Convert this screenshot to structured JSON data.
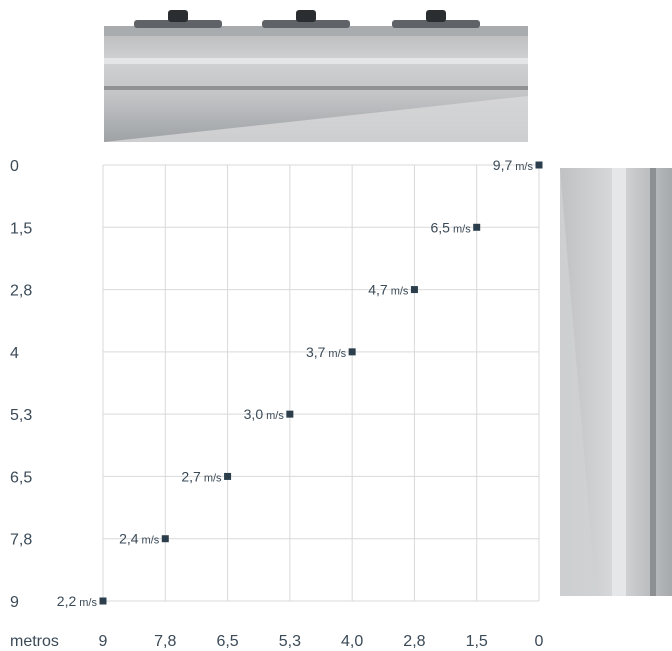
{
  "chart_data": {
    "type": "scatter",
    "title": "",
    "xlabel": "metros",
    "ylabel": "",
    "x_tick_labels": [
      "9",
      "7,8",
      "6,5",
      "5,3",
      "4,0",
      "2,8",
      "1,5",
      "0"
    ],
    "y_tick_labels": [
      "0",
      "1,5",
      "2,8",
      "4",
      "5,3",
      "6,5",
      "7,8",
      "9"
    ],
    "unit": "m/s",
    "points": [
      {
        "x": 0,
        "y": 0,
        "value": "9,7"
      },
      {
        "x": 1.5,
        "y": 1.5,
        "value": "6,5"
      },
      {
        "x": 2.8,
        "y": 2.8,
        "value": "4,7"
      },
      {
        "x": 4.0,
        "y": 4.0,
        "value": "3,7"
      },
      {
        "x": 5.3,
        "y": 5.3,
        "value": "3,0"
      },
      {
        "x": 6.5,
        "y": 6.5,
        "value": "2,7"
      },
      {
        "x": 7.8,
        "y": 7.8,
        "value": "2,4"
      },
      {
        "x": 9,
        "y": 9,
        "value": "2,2"
      }
    ],
    "grid": true,
    "marker_color": "#2c3e4c",
    "grid_color": "#d9d9d9"
  }
}
